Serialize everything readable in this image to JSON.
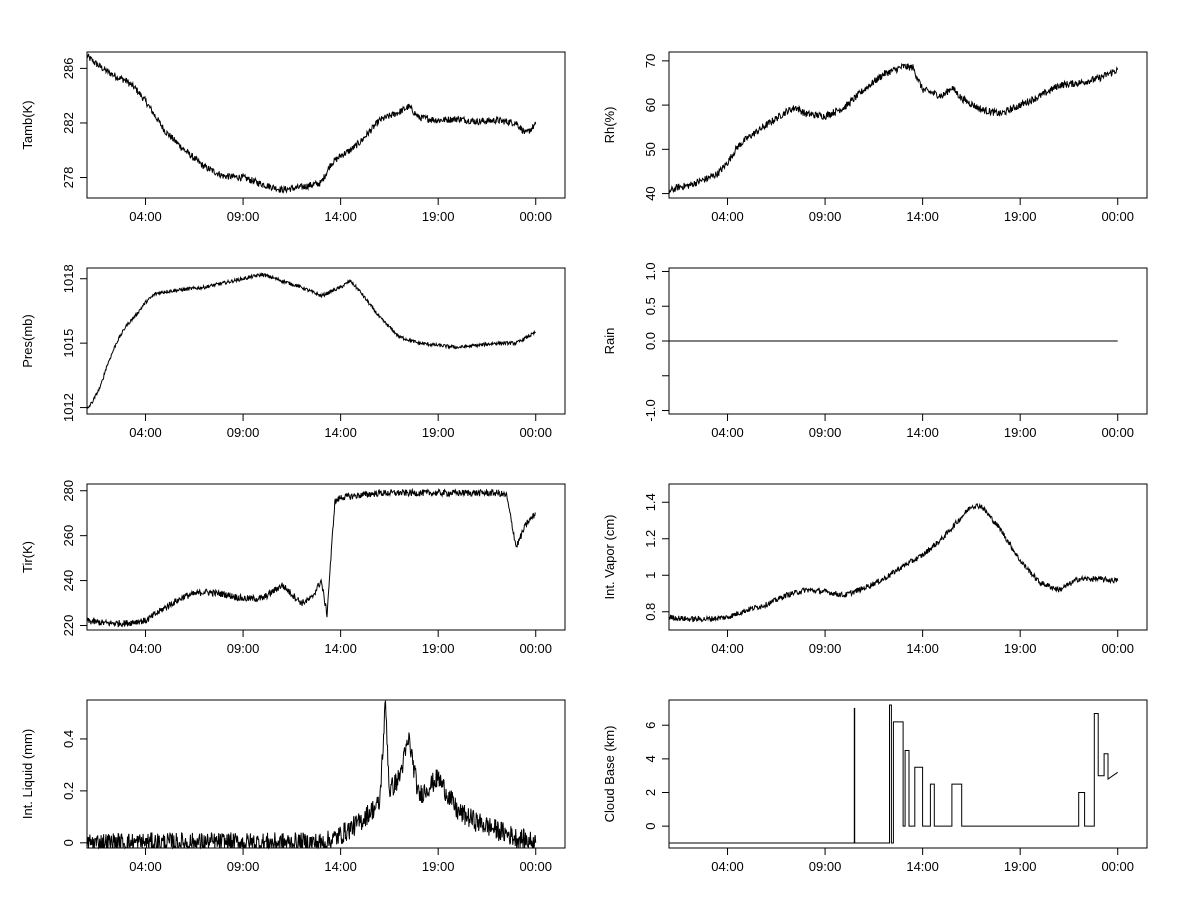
{
  "chart_data": [
    {
      "type": "line",
      "ylabel": "Tamb(K)",
      "ylim": [
        276.5,
        287.2
      ],
      "yticks": [
        278,
        282,
        286
      ],
      "xlim": [
        0,
        24.5
      ],
      "xticks": [
        3,
        8,
        13,
        18,
        23
      ],
      "xtick_labels": [
        "04:00",
        "09:00",
        "14:00",
        "19:00",
        "00:00"
      ],
      "series": [
        {
          "x": [
            0,
            0.5,
            1,
            1.5,
            2,
            2.5,
            3,
            3.5,
            4,
            5,
            6,
            7,
            8,
            9,
            10,
            11,
            12,
            12.5,
            13,
            13.5,
            14,
            14.5,
            15,
            16,
            16.5,
            17,
            18,
            19,
            20,
            21,
            22,
            22.5,
            23
          ],
          "y": [
            286.9,
            286.3,
            285.8,
            285.4,
            285.1,
            284.5,
            283.6,
            282.5,
            281.4,
            280.0,
            278.8,
            278.1,
            278.0,
            277.5,
            277.1,
            277.3,
            277.6,
            279.0,
            279.6,
            280.0,
            280.6,
            281.4,
            282.2,
            282.8,
            283.2,
            282.4,
            282.2,
            282.3,
            282.1,
            282.2,
            282.0,
            281.2,
            281.9
          ],
          "noise": 0.25
        }
      ]
    },
    {
      "type": "line",
      "ylabel": "Rh(%)",
      "ylim": [
        39,
        72
      ],
      "yticks": [
        40,
        50,
        60,
        70
      ],
      "xlim": [
        0,
        24.5
      ],
      "xticks": [
        3,
        8,
        13,
        18,
        23
      ],
      "xtick_labels": [
        "04:00",
        "09:00",
        "14:00",
        "19:00",
        "00:00"
      ],
      "series": [
        {
          "x": [
            0,
            0.5,
            1,
            2,
            2.5,
            3,
            3.5,
            4,
            5,
            6,
            6.5,
            7,
            8,
            9,
            10,
            11,
            12,
            12.5,
            13,
            14,
            14.5,
            15,
            16,
            17,
            18,
            19,
            20,
            21,
            22,
            22.5,
            23
          ],
          "y": [
            40.5,
            41.5,
            41.8,
            43.5,
            44.5,
            47.0,
            50.5,
            52.5,
            55.5,
            58.5,
            59.5,
            58.0,
            57.5,
            59.5,
            63.5,
            67.0,
            68.7,
            68.5,
            63.5,
            62.0,
            64.0,
            61.5,
            59.0,
            58.0,
            60.0,
            62.0,
            64.5,
            65.0,
            66.0,
            67.0,
            68.0
          ],
          "noise": 0.8
        }
      ]
    },
    {
      "type": "line",
      "ylabel": "Pres(mb)",
      "ylim": [
        1011.7,
        1018.5
      ],
      "yticks": [
        1012,
        1015,
        1018
      ],
      "xlim": [
        0,
        24.5
      ],
      "xticks": [
        3,
        8,
        13,
        18,
        23
      ],
      "xtick_labels": [
        "04:00",
        "09:00",
        "14:00",
        "19:00",
        "00:00"
      ],
      "series": [
        {
          "x": [
            0,
            0.3,
            0.7,
            1,
            1.5,
            2,
            2.5,
            3,
            3.5,
            4,
            5,
            6,
            7,
            8,
            9,
            10,
            11,
            12,
            13,
            13.5,
            14,
            15,
            16,
            17,
            18,
            19,
            20,
            21,
            22,
            23
          ],
          "y": [
            1011.9,
            1012.3,
            1013.0,
            1013.9,
            1015.0,
            1015.8,
            1016.3,
            1016.9,
            1017.3,
            1017.4,
            1017.5,
            1017.6,
            1017.8,
            1018.0,
            1018.2,
            1017.9,
            1017.6,
            1017.2,
            1017.6,
            1017.9,
            1017.4,
            1016.2,
            1015.3,
            1015.0,
            1014.9,
            1014.8,
            1014.9,
            1015.0,
            1015.0,
            1015.5
          ],
          "noise": 0.08
        }
      ]
    },
    {
      "type": "line",
      "ylabel": "Rain",
      "ylim": [
        -1.05,
        1.05
      ],
      "yticks": [
        -1.0,
        -0.5,
        0.0,
        0.5,
        1.0
      ],
      "ytick_labels": [
        "-1.0",
        "",
        "0.0",
        "0.5",
        "1.0"
      ],
      "xlim": [
        0,
        24.5
      ],
      "xticks": [
        3,
        8,
        13,
        18,
        23
      ],
      "xtick_labels": [
        "04:00",
        "09:00",
        "14:00",
        "19:00",
        "00:00"
      ],
      "series": [
        {
          "x": [
            0,
            23
          ],
          "y": [
            0,
            0
          ],
          "noise": 0
        }
      ]
    },
    {
      "type": "line",
      "ylabel": "Tir(K)",
      "ylim": [
        218,
        283
      ],
      "yticks": [
        220,
        240,
        260,
        280
      ],
      "xlim": [
        0,
        24.5
      ],
      "xticks": [
        3,
        8,
        13,
        18,
        23
      ],
      "xtick_labels": [
        "04:00",
        "09:00",
        "14:00",
        "19:00",
        "00:00"
      ],
      "series": [
        {
          "x": [
            0,
            1,
            2,
            2.7,
            3,
            4,
            5,
            6,
            7,
            8,
            9,
            10,
            11,
            11.5,
            12,
            12.3,
            12.7,
            13,
            14,
            15,
            16,
            17,
            18,
            19,
            20,
            21,
            21.5,
            22,
            22.5,
            23
          ],
          "y": [
            222,
            221,
            221,
            222,
            222,
            228,
            233,
            235,
            234,
            232,
            232,
            238,
            230,
            232,
            240,
            225,
            275,
            277,
            278,
            279,
            279,
            279,
            279,
            279,
            279,
            279,
            278,
            255,
            265,
            270
          ],
          "noise": 1.5
        }
      ]
    },
    {
      "type": "line",
      "ylabel": "Int. Vapor (cm)",
      "ylim": [
        0.7,
        1.5
      ],
      "yticks": [
        0.8,
        1.0,
        1.2,
        1.4
      ],
      "xlim": [
        0,
        24.5
      ],
      "xticks": [
        3,
        8,
        13,
        18,
        23
      ],
      "xtick_labels": [
        "04:00",
        "09:00",
        "14:00",
        "19:00",
        "00:00"
      ],
      "series": [
        {
          "x": [
            0,
            1,
            2,
            3,
            4,
            5,
            6,
            7,
            8,
            9,
            10,
            11,
            12,
            13,
            14,
            15,
            15.5,
            16,
            17,
            18,
            19,
            20,
            21,
            22,
            23
          ],
          "y": [
            0.77,
            0.76,
            0.76,
            0.77,
            0.81,
            0.84,
            0.89,
            0.92,
            0.91,
            0.89,
            0.93,
            0.98,
            1.05,
            1.11,
            1.2,
            1.32,
            1.38,
            1.38,
            1.25,
            1.08,
            0.96,
            0.92,
            0.98,
            0.98,
            0.97
          ],
          "noise": 0.015
        }
      ]
    },
    {
      "type": "line",
      "ylabel": "Int. Liquid (mm)",
      "ylim": [
        -0.02,
        0.55
      ],
      "yticks": [
        0.0,
        0.2,
        0.4
      ],
      "xlim": [
        0,
        24.5
      ],
      "xticks": [
        3,
        8,
        13,
        18,
        23
      ],
      "xtick_labels": [
        "04:00",
        "09:00",
        "14:00",
        "19:00",
        "00:00"
      ],
      "series": [
        {
          "x": [
            0,
            12,
            12.5,
            13,
            14,
            14.5,
            15,
            15.3,
            15.5,
            16,
            16.5,
            17,
            18,
            19,
            20,
            21,
            22,
            23
          ],
          "y": [
            0,
            0,
            0.01,
            0.03,
            0.08,
            0.12,
            0.15,
            0.54,
            0.2,
            0.25,
            0.4,
            0.18,
            0.25,
            0.12,
            0.08,
            0.05,
            0.02,
            0.0
          ],
          "noise": 0.04
        }
      ]
    },
    {
      "type": "line",
      "ylabel": "Cloud Base (km)",
      "ylim": [
        -1.3,
        7.5
      ],
      "yticks": [
        0,
        2,
        4,
        6
      ],
      "xlim": [
        0,
        24.5
      ],
      "xticks": [
        3,
        8,
        13,
        18,
        23
      ],
      "xtick_labels": [
        "04:00",
        "09:00",
        "14:00",
        "19:00",
        "00:00"
      ],
      "series": [
        {
          "x": [
            0,
            9.5,
            9.5,
            9.52,
            9.52,
            11.3,
            11.3,
            11.4,
            11.4,
            11.5,
            11.5,
            12.0,
            12.0,
            12.1,
            12.1,
            12.3,
            12.3,
            12.6,
            12.6,
            13.0,
            13.0,
            13.4,
            13.4,
            13.6,
            13.6,
            14.5,
            14.5,
            15.0,
            15.0,
            21.0,
            21.0,
            21.3,
            21.3,
            21.8,
            21.8,
            22.0,
            22.0,
            22.3,
            22.3,
            22.5,
            22.5,
            23.0
          ],
          "y": [
            -1,
            -1,
            7,
            7,
            -1,
            -1,
            7.2,
            7.2,
            -1,
            -1,
            6.2,
            6.2,
            0,
            0,
            4.5,
            4.5,
            0,
            0,
            3.5,
            3.5,
            0,
            0,
            2.5,
            2.5,
            0,
            0,
            2.5,
            2.5,
            0,
            0,
            2.0,
            2.0,
            0,
            0,
            6.7,
            6.7,
            3.0,
            3.0,
            4.3,
            4.3,
            2.8,
            3.2
          ],
          "noise": 0
        }
      ]
    }
  ]
}
